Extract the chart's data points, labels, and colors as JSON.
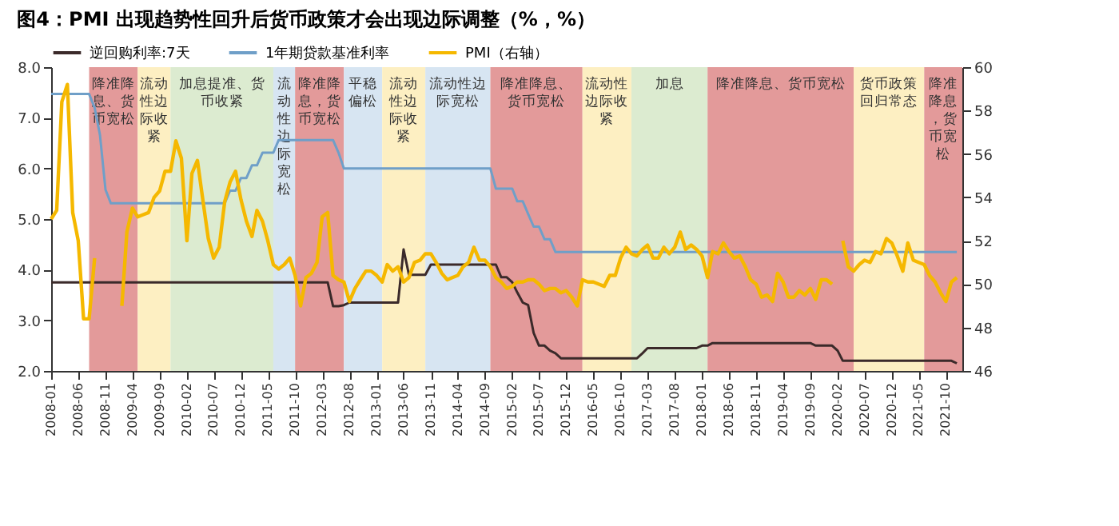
{
  "chart_data": {
    "type": "line",
    "title": "图4：PMI 出现趋势性回升后货币政策才会出现边际调整（%，%）",
    "x": [
      "2008-01",
      "2008-02",
      "2008-03",
      "2008-04",
      "2008-05",
      "2008-06",
      "2008-07",
      "2008-08",
      "2008-09",
      "2008-10",
      "2008-11",
      "2008-12",
      "2009-01",
      "2009-02",
      "2009-03",
      "2009-04",
      "2009-05",
      "2009-06",
      "2009-07",
      "2009-08",
      "2009-09",
      "2009-10",
      "2009-11",
      "2009-12",
      "2010-01",
      "2010-02",
      "2010-03",
      "2010-04",
      "2010-05",
      "2010-06",
      "2010-07",
      "2010-08",
      "2010-09",
      "2010-10",
      "2010-11",
      "2010-12",
      "2011-01",
      "2011-02",
      "2011-03",
      "2011-04",
      "2011-05",
      "2011-06",
      "2011-07",
      "2011-08",
      "2011-09",
      "2011-10",
      "2011-11",
      "2011-12",
      "2012-01",
      "2012-02",
      "2012-03",
      "2012-04",
      "2012-05",
      "2012-06",
      "2012-07",
      "2012-08",
      "2012-09",
      "2012-10",
      "2012-11",
      "2012-12",
      "2013-01",
      "2013-02",
      "2013-03",
      "2013-04",
      "2013-05",
      "2013-06",
      "2013-07",
      "2013-08",
      "2013-09",
      "2013-10",
      "2013-11",
      "2013-12",
      "2014-01",
      "2014-02",
      "2014-03",
      "2014-04",
      "2014-05",
      "2014-06",
      "2014-07",
      "2014-08",
      "2014-09",
      "2014-10",
      "2014-11",
      "2014-12",
      "2015-01",
      "2015-02",
      "2015-03",
      "2015-04",
      "2015-05",
      "2015-06",
      "2015-07",
      "2015-08",
      "2015-09",
      "2015-10",
      "2015-11",
      "2015-12",
      "2016-01",
      "2016-02",
      "2016-03",
      "2016-04",
      "2016-05",
      "2016-06",
      "2016-07",
      "2016-08",
      "2016-09",
      "2016-10",
      "2016-11",
      "2016-12",
      "2017-01",
      "2017-02",
      "2017-03",
      "2017-04",
      "2017-05",
      "2017-06",
      "2017-07",
      "2017-08",
      "2017-09",
      "2017-10",
      "2017-11",
      "2017-12",
      "2018-01",
      "2018-02",
      "2018-03",
      "2018-04",
      "2018-05",
      "2018-06",
      "2018-07",
      "2018-08",
      "2018-09",
      "2018-10",
      "2018-11",
      "2018-12",
      "2019-01",
      "2019-02",
      "2019-03",
      "2019-04",
      "2019-05",
      "2019-06",
      "2019-07",
      "2019-08",
      "2019-09",
      "2019-10",
      "2019-11",
      "2019-12",
      "2020-01",
      "2020-02",
      "2020-03",
      "2020-04",
      "2020-05",
      "2020-06",
      "2020-07",
      "2020-08",
      "2020-09",
      "2020-10",
      "2020-11",
      "2020-12",
      "2021-01",
      "2021-02",
      "2021-03",
      "2021-04",
      "2021-05",
      "2021-06",
      "2021-07",
      "2021-08",
      "2021-09",
      "2021-10",
      "2021-11",
      "2021-12"
    ],
    "series": [
      {
        "name": "逆回购利率:7天",
        "color": "#3b2a2a",
        "values": [
          3.75,
          3.75,
          3.75,
          3.75,
          3.75,
          3.75,
          3.75,
          3.75,
          3.75,
          3.75,
          3.75,
          3.75,
          3.75,
          3.75,
          3.75,
          3.75,
          3.75,
          3.75,
          3.75,
          3.75,
          3.75,
          3.75,
          3.75,
          3.75,
          3.75,
          3.75,
          3.75,
          3.75,
          3.75,
          3.75,
          3.75,
          3.75,
          3.75,
          3.75,
          3.75,
          3.75,
          3.75,
          3.75,
          3.75,
          3.75,
          3.75,
          3.75,
          3.75,
          3.75,
          3.75,
          3.75,
          3.75,
          3.75,
          3.75,
          3.75,
          3.75,
          3.75,
          3.28,
          3.28,
          3.3,
          3.35,
          3.35,
          3.35,
          3.35,
          3.35,
          3.35,
          3.35,
          3.35,
          3.35,
          3.35,
          4.4,
          3.9,
          3.9,
          3.9,
          3.9,
          4.1,
          4.1,
          4.1,
          4.1,
          4.1,
          4.1,
          4.1,
          4.1,
          4.1,
          4.1,
          4.1,
          4.1,
          4.1,
          3.85,
          3.85,
          3.75,
          3.55,
          3.35,
          3.3,
          2.75,
          2.5,
          2.5,
          2.4,
          2.35,
          2.25,
          2.25,
          2.25,
          2.25,
          2.25,
          2.25,
          2.25,
          2.25,
          2.25,
          2.25,
          2.25,
          2.25,
          2.25,
          2.25,
          2.25,
          2.35,
          2.45,
          2.45,
          2.45,
          2.45,
          2.45,
          2.45,
          2.45,
          2.45,
          2.45,
          2.45,
          2.5,
          2.5,
          2.55,
          2.55,
          2.55,
          2.55,
          2.55,
          2.55,
          2.55,
          2.55,
          2.55,
          2.55,
          2.55,
          2.55,
          2.55,
          2.55,
          2.55,
          2.55,
          2.55,
          2.55,
          2.55,
          2.5,
          2.5,
          2.5,
          2.5,
          2.4,
          2.2,
          2.2,
          2.2,
          2.2,
          2.2,
          2.2,
          2.2,
          2.2,
          2.2,
          2.2,
          2.2,
          2.2,
          2.2,
          2.2,
          2.2,
          2.2,
          2.2,
          2.2,
          2.2,
          2.2,
          2.2,
          2.15
        ]
      },
      {
        "name": "1年期贷款基准利率",
        "color": "#6f9fc8",
        "values": [
          7.47,
          7.47,
          7.47,
          7.47,
          7.47,
          7.47,
          7.47,
          7.47,
          7.2,
          6.66,
          5.58,
          5.31,
          5.31,
          5.31,
          5.31,
          5.31,
          5.31,
          5.31,
          5.31,
          5.31,
          5.31,
          5.31,
          5.31,
          5.31,
          5.31,
          5.31,
          5.31,
          5.31,
          5.31,
          5.31,
          5.31,
          5.31,
          5.31,
          5.56,
          5.56,
          5.81,
          5.81,
          6.06,
          6.06,
          6.31,
          6.31,
          6.31,
          6.56,
          6.56,
          6.56,
          6.56,
          6.56,
          6.56,
          6.56,
          6.56,
          6.56,
          6.56,
          6.56,
          6.31,
          6.0,
          6.0,
          6.0,
          6.0,
          6.0,
          6.0,
          6.0,
          6.0,
          6.0,
          6.0,
          6.0,
          6.0,
          6.0,
          6.0,
          6.0,
          6.0,
          6.0,
          6.0,
          6.0,
          6.0,
          6.0,
          6.0,
          6.0,
          6.0,
          6.0,
          6.0,
          6.0,
          6.0,
          5.6,
          5.6,
          5.6,
          5.6,
          5.35,
          5.35,
          5.1,
          4.85,
          4.85,
          4.6,
          4.6,
          4.35,
          4.35,
          4.35,
          4.35,
          4.35,
          4.35,
          4.35,
          4.35,
          4.35,
          4.35,
          4.35,
          4.35,
          4.35,
          4.35,
          4.35,
          4.35,
          4.35,
          4.35,
          4.35,
          4.35,
          4.35,
          4.35,
          4.35,
          4.35,
          4.35,
          4.35,
          4.35,
          4.35,
          4.35,
          4.35,
          4.35,
          4.35,
          4.35,
          4.35,
          4.35,
          4.35,
          4.35,
          4.35,
          4.35,
          4.35,
          4.35,
          4.35,
          4.35,
          4.35,
          4.35,
          4.35,
          4.35,
          4.35,
          4.35,
          4.35,
          4.35,
          4.35,
          4.35,
          4.35,
          4.35,
          4.35,
          4.35,
          4.35,
          4.35,
          4.35,
          4.35,
          4.35,
          4.35,
          4.35,
          4.35,
          4.35,
          4.35,
          4.35,
          4.35,
          4.35,
          4.35,
          4.35,
          4.35,
          4.35,
          4.35
        ]
      },
      {
        "name": "PMI（右轴）",
        "color": "#f5b800",
        "axis": "y2",
        "values": [
          53.0,
          53.4,
          58.4,
          59.2,
          53.3,
          52.0,
          48.4,
          48.4,
          51.2,
          null,
          null,
          null,
          null,
          49.0,
          52.4,
          53.5,
          53.1,
          53.2,
          53.3,
          54.0,
          54.3,
          55.2,
          55.2,
          56.6,
          55.8,
          52.0,
          55.1,
          55.7,
          53.9,
          52.1,
          51.2,
          51.7,
          53.8,
          54.7,
          55.2,
          53.9,
          52.9,
          52.2,
          53.4,
          52.9,
          52.0,
          50.9,
          50.7,
          50.9,
          51.2,
          50.4,
          49.0,
          50.3,
          50.5,
          51.0,
          53.1,
          53.3,
          50.4,
          50.2,
          50.1,
          49.2,
          49.8,
          50.2,
          50.6,
          50.6,
          50.4,
          50.1,
          50.9,
          50.6,
          50.8,
          50.1,
          50.3,
          51.0,
          51.1,
          51.4,
          51.4,
          51.0,
          50.5,
          50.2,
          50.3,
          50.4,
          50.8,
          51.0,
          51.7,
          51.1,
          51.1,
          50.8,
          50.3,
          50.1,
          49.8,
          49.9,
          50.1,
          50.1,
          50.2,
          50.2,
          50.0,
          49.7,
          49.8,
          49.8,
          49.6,
          49.7,
          49.4,
          49.0,
          50.2,
          50.1,
          50.1,
          50.0,
          49.9,
          50.4,
          50.4,
          51.2,
          51.7,
          51.4,
          51.3,
          51.6,
          51.8,
          51.2,
          51.2,
          51.7,
          51.4,
          51.7,
          52.4,
          51.6,
          51.8,
          51.6,
          51.3,
          50.3,
          51.5,
          51.4,
          51.9,
          51.5,
          51.2,
          51.3,
          50.8,
          50.2,
          50.0,
          49.4,
          49.5,
          49.2,
          50.5,
          50.1,
          49.4,
          49.4,
          49.7,
          49.5,
          49.8,
          49.3,
          50.2,
          50.2,
          50.0,
          null,
          52.0,
          50.8,
          50.6,
          50.9,
          51.1,
          51.0,
          51.5,
          51.4,
          52.1,
          51.9,
          51.3,
          50.6,
          51.9,
          51.1,
          51.0,
          50.9,
          50.4,
          50.1,
          49.6,
          49.2,
          50.1,
          50.3
        ]
      }
    ],
    "xlim": [
      "2008-01",
      "2022-01"
    ],
    "xticks": [
      "2008-01",
      "2008-06",
      "2008-11",
      "2009-04",
      "2009-09",
      "2010-02",
      "2010-07",
      "2010-12",
      "2011-05",
      "2011-10",
      "2012-03",
      "2012-08",
      "2013-01",
      "2013-06",
      "2013-11",
      "2014-04",
      "2014-09",
      "2015-02",
      "2015-07",
      "2015-12",
      "2016-05",
      "2016-10",
      "2017-03",
      "2017-08",
      "2018-01",
      "2018-06",
      "2018-11",
      "2019-04",
      "2019-09",
      "2020-02",
      "2020-07",
      "2020-12",
      "2021-05",
      "2021-10"
    ],
    "ylim": [
      2,
      8
    ],
    "yticks": [
      {
        "value": 2,
        "label": "2.0"
      },
      {
        "value": 3,
        "label": "3.0"
      },
      {
        "value": 4,
        "label": "4.0"
      },
      {
        "value": 5,
        "label": "5.0"
      },
      {
        "value": 6,
        "label": "6.0"
      },
      {
        "value": 7,
        "label": "7.0"
      },
      {
        "value": 8,
        "label": "8.0"
      }
    ],
    "y2lim": [
      46,
      60
    ],
    "y2ticks": [
      46,
      48,
      50,
      52,
      54,
      56,
      58,
      60
    ],
    "bands": [
      {
        "axis": "x",
        "from": "2008-08",
        "to": "2009-05",
        "label": "降准降息、货币宽松",
        "color": "#e39a9a"
      },
      {
        "axis": "x",
        "from": "2009-05",
        "to": "2009-11",
        "label": "流动性边际收紧",
        "color": "#fdefc2"
      },
      {
        "axis": "x",
        "from": "2009-11",
        "to": "2011-06",
        "label": "加息提准、货币收紧",
        "color": "#dcebd0"
      },
      {
        "axis": "x",
        "from": "2011-06",
        "to": "2011-10",
        "label": "流动性边际宽松",
        "color": "#d7e5f2"
      },
      {
        "axis": "x",
        "from": "2011-10",
        "to": "2012-07",
        "label": "降准降息，货币宽松",
        "color": "#e39a9a"
      },
      {
        "axis": "x",
        "from": "2012-07",
        "to": "2013-02",
        "label": "平稳偏松",
        "color": "#d7e5f2"
      },
      {
        "axis": "x",
        "from": "2013-02",
        "to": "2013-10",
        "label": "流动性边际收紧",
        "color": "#fdefc2"
      },
      {
        "axis": "x",
        "from": "2013-10",
        "to": "2014-10",
        "label": "流动性边际宽松",
        "color": "#d7e5f2"
      },
      {
        "axis": "x",
        "from": "2014-10",
        "to": "2016-03",
        "label": "降准降息、货币宽松",
        "color": "#e39a9a"
      },
      {
        "axis": "x",
        "from": "2016-03",
        "to": "2016-12",
        "label": "流动性边际收紧",
        "color": "#fdefc2"
      },
      {
        "axis": "x",
        "from": "2016-12",
        "to": "2018-02",
        "label": "加息",
        "color": "#dcebd0"
      },
      {
        "axis": "x",
        "from": "2018-02",
        "to": "2020-05",
        "label": "降准降息、货币宽松",
        "color": "#e39a9a"
      },
      {
        "axis": "x",
        "from": "2020-05",
        "to": "2021-06",
        "label": "货币政策回归常态",
        "color": "#fdefc2"
      },
      {
        "axis": "x",
        "from": "2021-06",
        "to": "2022-01",
        "label": "降准降息，货币宽松",
        "color": "#e39a9a"
      }
    ],
    "legend": "top",
    "grid": false,
    "marker": "none",
    "line_style": "solid"
  }
}
